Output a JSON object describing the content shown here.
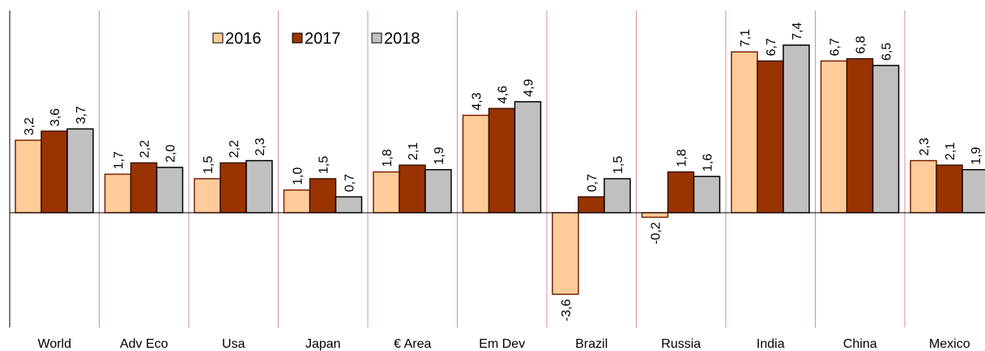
{
  "chart_data": {
    "type": "bar",
    "categories": [
      "World",
      "Adv Eco",
      "Usa",
      "Japan",
      "€ Area",
      "Em Dev",
      "Brazil",
      "Russia",
      "India",
      "China",
      "Mexico"
    ],
    "series": [
      {
        "name": "2016",
        "color": "#ffcc99",
        "values": [
          3.2,
          1.7,
          1.5,
          1.0,
          1.8,
          4.3,
          -3.6,
          -0.2,
          7.1,
          6.7,
          2.3
        ],
        "value_labels": [
          "3,2",
          "1,7",
          "1,5",
          "1,0",
          "1,8",
          "4,3",
          "-3,6",
          "-0,2",
          "7,1",
          "6,7",
          "2,3"
        ]
      },
      {
        "name": "2017",
        "color": "#993300",
        "values": [
          3.6,
          2.2,
          2.2,
          1.5,
          2.1,
          4.6,
          0.7,
          1.8,
          6.7,
          6.8,
          2.1
        ],
        "value_labels": [
          "3,6",
          "2,2",
          "2,2",
          "1,5",
          "2,1",
          "4,6",
          "0,7",
          "1,8",
          "6,7",
          "6,8",
          "2,1"
        ]
      },
      {
        "name": "2018",
        "color": "#c0c0c0",
        "values": [
          3.7,
          2.0,
          2.3,
          0.7,
          1.9,
          4.9,
          1.5,
          1.6,
          7.4,
          6.5,
          1.9
        ],
        "value_labels": [
          "3,7",
          "2,0",
          "2,3",
          "0,7",
          "1,9",
          "4,9",
          "1,5",
          "1,6",
          "7,4",
          "6,5",
          "1,9"
        ]
      }
    ],
    "ylim": [
      -5,
      9
    ],
    "legend": "top",
    "negative_label_color": "#ff0000"
  }
}
